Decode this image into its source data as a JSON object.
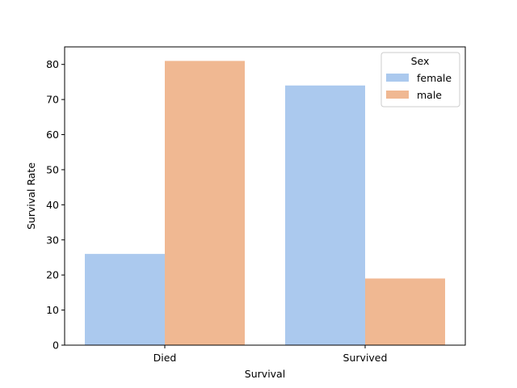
{
  "chart_data": {
    "type": "bar",
    "categories": [
      "Died",
      "Survived"
    ],
    "series": [
      {
        "name": "female",
        "values": [
          26,
          74
        ],
        "color": "#abc9ee"
      },
      {
        "name": "male",
        "values": [
          81,
          19
        ],
        "color": "#f0b892"
      }
    ],
    "title": "",
    "xlabel": "Survival",
    "ylabel": "Survival Rate",
    "ylim": [
      0,
      85
    ],
    "yticks": [
      0,
      10,
      20,
      30,
      40,
      50,
      60,
      70,
      80
    ],
    "grid": false,
    "legend": {
      "title": "Sex",
      "placement": "top-right"
    }
  }
}
